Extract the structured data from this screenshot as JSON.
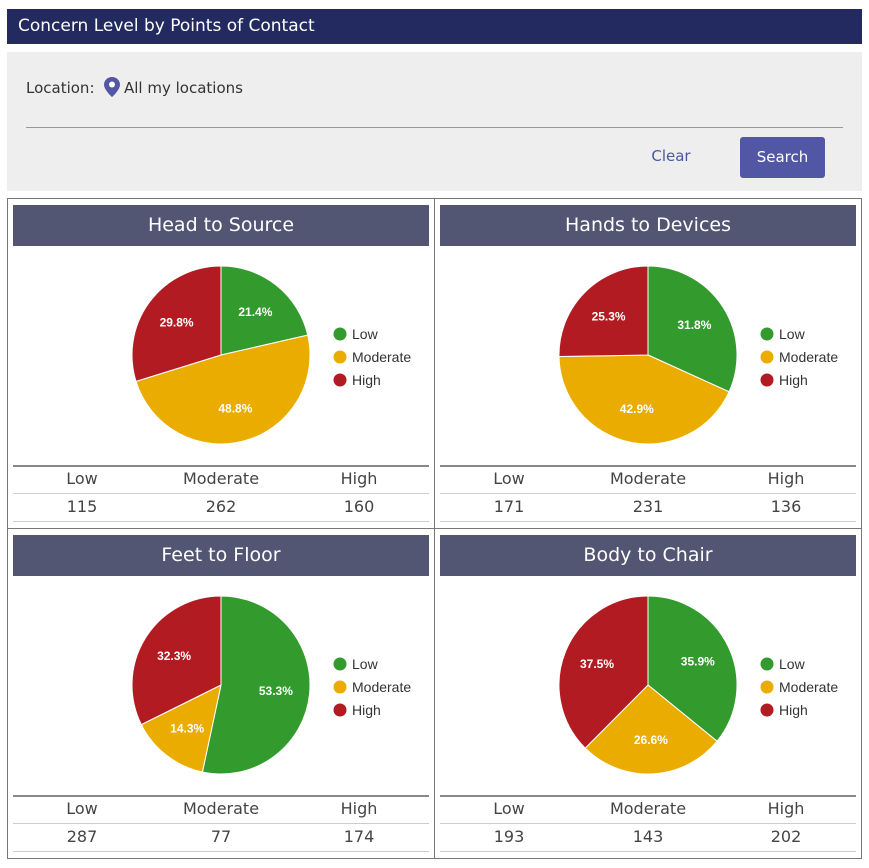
{
  "header": {
    "title": "Concern Level by Points of Contact"
  },
  "filter": {
    "location_label": "Location:",
    "location_value": "All my locations",
    "location_icon": "map-pin-icon",
    "clear_label": "Clear",
    "search_label": "Search"
  },
  "colors": {
    "low": "#339a2e",
    "moderate": "#ebac00",
    "high": "#b31b23",
    "title_bar": "#525673",
    "header": "#232a60",
    "button": "#5257a5"
  },
  "legend": [
    "Low",
    "Moderate",
    "High"
  ],
  "chart_data": [
    {
      "type": "pie",
      "title": "Head to Source",
      "categories": [
        "Low",
        "Moderate",
        "High"
      ],
      "values": [
        115,
        262,
        160
      ],
      "percent_labels": [
        "21.4%",
        "48.8%",
        "29.8%"
      ],
      "legend": "right",
      "table": {
        "headers": [
          "Low",
          "Moderate",
          "High"
        ],
        "values": [
          "115",
          "262",
          "160"
        ]
      }
    },
    {
      "type": "pie",
      "title": "Hands to Devices",
      "categories": [
        "Low",
        "Moderate",
        "High"
      ],
      "values": [
        171,
        231,
        136
      ],
      "percent_labels": [
        "31.8%",
        "42.9%",
        "25.3%"
      ],
      "legend": "right",
      "table": {
        "headers": [
          "Low",
          "Moderate",
          "High"
        ],
        "values": [
          "171",
          "231",
          "136"
        ]
      }
    },
    {
      "type": "pie",
      "title": "Feet to Floor",
      "categories": [
        "Low",
        "Moderate",
        "High"
      ],
      "values": [
        287,
        77,
        174
      ],
      "percent_labels": [
        "53.3%",
        "14.3%",
        "32.3%"
      ],
      "legend": "right",
      "table": {
        "headers": [
          "Low",
          "Moderate",
          "High"
        ],
        "values": [
          "287",
          "77",
          "174"
        ]
      }
    },
    {
      "type": "pie",
      "title": "Body to Chair",
      "categories": [
        "Low",
        "Moderate",
        "High"
      ],
      "values": [
        193,
        143,
        202
      ],
      "percent_labels": [
        "35.9%",
        "26.6%",
        "37.5%"
      ],
      "legend": "right",
      "table": {
        "headers": [
          "Low",
          "Moderate",
          "High"
        ],
        "values": [
          "193",
          "143",
          "202"
        ]
      }
    }
  ]
}
